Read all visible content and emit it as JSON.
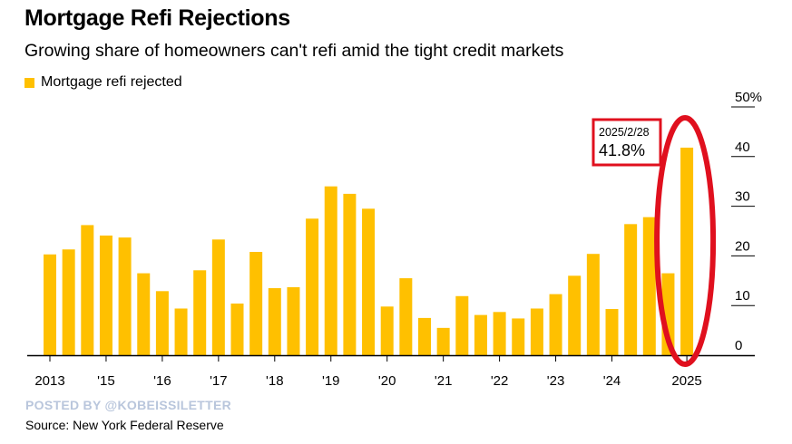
{
  "header": {
    "title": "Mortgage Refi Rejections",
    "subtitle": "Growing share of homeowners can't refi amid the tight credit markets"
  },
  "footer": {
    "watermark": "POSTED BY @KOBEISSILETTER",
    "source": "Source: New York Federal Reserve"
  },
  "colors": {
    "bar": "#ffc000",
    "highlight": "#e0101e",
    "axis": "#000000",
    "grid": "#000000"
  },
  "chart_data": {
    "type": "bar",
    "title": "Mortgage Refi Rejections",
    "subtitle": "Growing share of homeowners can't refi amid the tight credit markets",
    "legend": [
      {
        "label": "Mortgage refi rejected",
        "color": "#ffc000"
      }
    ],
    "legend_position": "top-left",
    "series": [
      {
        "name": "Mortgage refi rejected",
        "values": [
          20.3,
          21.3,
          26.2,
          24.1,
          23.7,
          16.5,
          12.9,
          9.4,
          17.1,
          23.3,
          10.4,
          20.8,
          13.5,
          13.7,
          27.5,
          34.0,
          32.5,
          29.5,
          9.8,
          15.5,
          7.5,
          5.5,
          11.9,
          8.1,
          8.7,
          7.4,
          9.4,
          12.3,
          16.0,
          20.4,
          9.3,
          26.4,
          27.8,
          16.5,
          41.8
        ]
      }
    ],
    "y_range": [
      0,
      50
    ],
    "y_ticks": [
      {
        "value": 0,
        "label": "0"
      },
      {
        "value": 10,
        "label": "10"
      },
      {
        "value": 20,
        "label": "20"
      },
      {
        "value": 30,
        "label": "30"
      },
      {
        "value": 40,
        "label": "40"
      },
      {
        "value": 50,
        "label": "50%"
      }
    ],
    "y_axis_position": "right",
    "x_ticks": [
      {
        "index": 0,
        "label": "2013"
      },
      {
        "index": 3,
        "label": "'15"
      },
      {
        "index": 6,
        "label": "'16"
      },
      {
        "index": 9,
        "label": "'17"
      },
      {
        "index": 12,
        "label": "'18"
      },
      {
        "index": 15,
        "label": "'19"
      },
      {
        "index": 18,
        "label": "'20"
      },
      {
        "index": 21,
        "label": "'21"
      },
      {
        "index": 24,
        "label": "'22"
      },
      {
        "index": 27,
        "label": "'23"
      },
      {
        "index": 30,
        "label": "'24"
      },
      {
        "index": 34,
        "label": "2025"
      }
    ],
    "grid": true,
    "annotation": {
      "bar_index": 34,
      "date": "2025/2/28",
      "value_label": "41.8%"
    }
  }
}
